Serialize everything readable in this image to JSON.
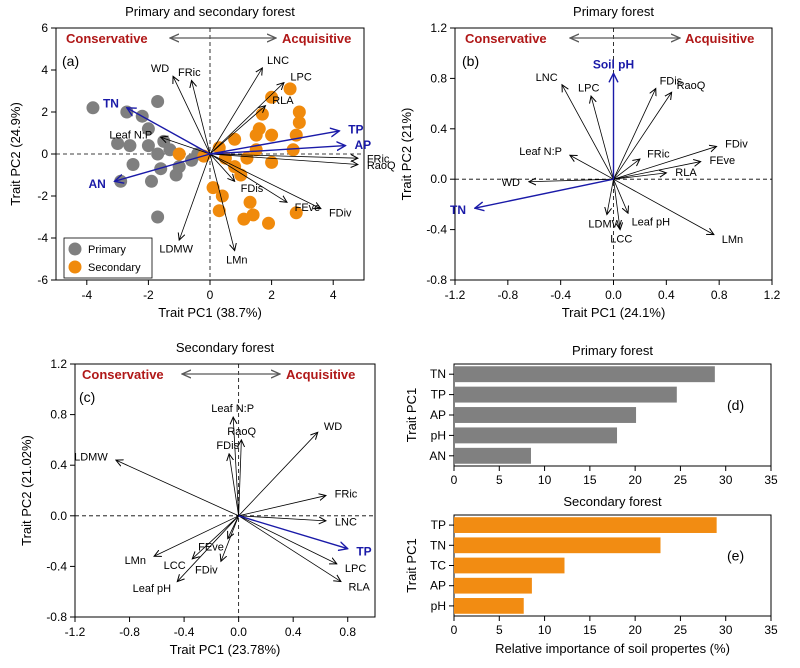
{
  "figure": {
    "axis_color": "#000000",
    "arrow_color": "#000000",
    "soil_arrow_color": "#1a1aa8",
    "cons_acq_color": "#b01818",
    "primary_color": "#7f7f7f",
    "secondary_color": "#f08a0c",
    "header_arrow_color": "#595959"
  },
  "chart_data": [
    {
      "id": "a",
      "type": "scatter",
      "title": "Primary and secondary forest",
      "panel_label": "(a)",
      "xlabel": "Trait PC1 (38.7%)",
      "ylabel": "Trait PC2 (24.9%)",
      "xlim": [
        -5,
        5
      ],
      "ylim": [
        -6,
        6
      ],
      "xticks": [
        -4,
        -2,
        0,
        2,
        4
      ],
      "yticks": [
        -6,
        -4,
        -2,
        0,
        2,
        4,
        6
      ],
      "conservative": "Conservative",
      "acquisitive": "Acquisitive",
      "legend": [
        "Primary",
        "Secondary"
      ],
      "legend_position": "bottom-left",
      "series": [
        {
          "name": "Primary",
          "points": [
            [
              -3.8,
              2.2
            ],
            [
              -2.7,
              2.0
            ],
            [
              -2.2,
              1.8
            ],
            [
              -1.7,
              2.5
            ],
            [
              -2.0,
              1.2
            ],
            [
              -1.5,
              0.6
            ],
            [
              -3.0,
              0.5
            ],
            [
              -2.6,
              0.4
            ],
            [
              -2.0,
              0.4
            ],
            [
              -1.3,
              0.2
            ],
            [
              -1.7,
              0.0
            ],
            [
              -2.5,
              -0.5
            ],
            [
              -1.6,
              -0.7
            ],
            [
              -1.1,
              -1.0
            ],
            [
              -1.9,
              -1.3
            ],
            [
              -2.9,
              -1.3
            ],
            [
              -1.7,
              -3.0
            ],
            [
              -0.4,
              0.0
            ],
            [
              -0.6,
              -0.3
            ],
            [
              -1.0,
              -0.6
            ]
          ]
        },
        {
          "name": "Secondary",
          "points": [
            [
              2.6,
              3.1
            ],
            [
              2.0,
              2.7
            ],
            [
              2.9,
              2.0
            ],
            [
              1.7,
              1.9
            ],
            [
              1.6,
              1.2
            ],
            [
              2.9,
              1.5
            ],
            [
              1.5,
              0.9
            ],
            [
              2.0,
              0.9
            ],
            [
              2.8,
              0.9
            ],
            [
              0.8,
              0.7
            ],
            [
              0.3,
              0.3
            ],
            [
              1.5,
              0.2
            ],
            [
              2.7,
              0.2
            ],
            [
              -1.0,
              0.0
            ],
            [
              -0.2,
              -0.1
            ],
            [
              0.5,
              -0.2
            ],
            [
              1.2,
              -0.2
            ],
            [
              0.8,
              -0.6
            ],
            [
              2.0,
              -0.4
            ],
            [
              1.0,
              -1.0
            ],
            [
              0.1,
              -1.6
            ],
            [
              0.4,
              -2.0
            ],
            [
              1.3,
              -2.3
            ],
            [
              0.3,
              -2.7
            ],
            [
              1.4,
              -2.9
            ],
            [
              1.1,
              -3.1
            ],
            [
              1.9,
              -3.3
            ],
            [
              2.8,
              -2.8
            ]
          ]
        }
      ],
      "vectors": [
        {
          "name": "WD",
          "x": -1.2,
          "y": 3.7,
          "soil": false
        },
        {
          "name": "FRic",
          "x": -0.6,
          "y": 3.5,
          "soil": false
        },
        {
          "name": "LNC",
          "x": 1.7,
          "y": 4.1,
          "soil": false
        },
        {
          "name": "LPC",
          "x": 2.4,
          "y": 3.4,
          "soil": false
        },
        {
          "name": "RLA",
          "x": 1.8,
          "y": 2.3,
          "soil": false
        },
        {
          "name": "Leaf N:P",
          "x": -1.6,
          "y": 0.8,
          "soil": false
        },
        {
          "name": "FRic",
          "x": 4.8,
          "y": -0.2,
          "soil": false
        },
        {
          "name": "RaoQ",
          "x": 4.8,
          "y": -0.5,
          "soil": false
        },
        {
          "name": "FDis",
          "x": 0.8,
          "y": -1.3,
          "soil": false
        },
        {
          "name": "FEve",
          "x": 2.5,
          "y": -2.3,
          "soil": false
        },
        {
          "name": "FDiv",
          "x": 3.6,
          "y": -2.6,
          "soil": false
        },
        {
          "name": "LDMW",
          "x": -1.0,
          "y": -4.1,
          "soil": false
        },
        {
          "name": "LMn",
          "x": 0.8,
          "y": -4.6,
          "soil": false
        },
        {
          "name": "TN",
          "x": -2.7,
          "y": 2.2,
          "soil": true
        },
        {
          "name": "TP",
          "x": 4.2,
          "y": 1.1,
          "soil": true
        },
        {
          "name": "AP",
          "x": 4.4,
          "y": 0.4,
          "soil": true
        },
        {
          "name": "AN",
          "x": -3.1,
          "y": -1.3,
          "soil": true
        }
      ]
    },
    {
      "id": "b",
      "type": "scatter",
      "title": "Primary forest",
      "panel_label": "(b)",
      "xlabel": "Trait PC1 (24.1%)",
      "ylabel": "Trait PC2 (21%)",
      "xlim": [
        -1.2,
        1.2
      ],
      "ylim": [
        -0.8,
        1.2
      ],
      "xticks": [
        -1.2,
        -0.8,
        -0.4,
        0.0,
        0.4,
        0.8,
        1.2
      ],
      "yticks": [
        -0.8,
        -0.4,
        0.0,
        0.4,
        0.8,
        1.2
      ],
      "conservative": "Conservative",
      "acquisitive": "Acquisitive",
      "vectors": [
        {
          "name": "LNC",
          "x": -0.39,
          "y": 0.75,
          "soil": false
        },
        {
          "name": "LPC",
          "x": -0.17,
          "y": 0.66,
          "soil": false
        },
        {
          "name": "FDis",
          "x": 0.32,
          "y": 0.72,
          "soil": false
        },
        {
          "name": "RaoQ",
          "x": 0.44,
          "y": 0.69,
          "soil": false
        },
        {
          "name": "FRic",
          "x": 0.2,
          "y": 0.16,
          "soil": false
        },
        {
          "name": "FDiv",
          "x": 0.78,
          "y": 0.26,
          "soil": false
        },
        {
          "name": "FEve",
          "x": 0.66,
          "y": 0.14,
          "soil": false
        },
        {
          "name": "RLA",
          "x": 0.4,
          "y": 0.05,
          "soil": false
        },
        {
          "name": "Leaf N:P",
          "x": -0.33,
          "y": 0.19,
          "soil": false
        },
        {
          "name": "WD",
          "x": -0.64,
          "y": -0.02,
          "soil": false
        },
        {
          "name": "Leaf pH",
          "x": 0.11,
          "y": -0.27,
          "soil": false
        },
        {
          "name": "LDMW",
          "x": -0.05,
          "y": -0.28,
          "soil": false
        },
        {
          "name": "LCC",
          "x": 0.05,
          "y": -0.4,
          "soil": false
        },
        {
          "name": "LMn",
          "x": 0.76,
          "y": -0.44,
          "soil": false
        },
        {
          "name": "Soil pH",
          "x": 0.0,
          "y": 0.84,
          "soil": true
        },
        {
          "name": "TN",
          "x": -1.05,
          "y": -0.23,
          "soil": true
        }
      ]
    },
    {
      "id": "c",
      "type": "scatter",
      "title": "Secondary forest",
      "panel_label": "(c)",
      "xlabel": "Trait PC1 (23.78%)",
      "ylabel": "Trait PC2 (21.02%)",
      "xlim": [
        -1.2,
        1.0
      ],
      "ylim": [
        -0.8,
        1.2
      ],
      "xticks": [
        -1.2,
        -0.8,
        -0.4,
        0.0,
        0.4,
        0.8
      ],
      "yticks": [
        -0.8,
        -0.4,
        0.0,
        0.4,
        0.8,
        1.2
      ],
      "conservative": "Conservative",
      "acquisitive": "Acquisitive",
      "vectors": [
        {
          "name": "Leaf N:P",
          "x": -0.04,
          "y": 0.78,
          "soil": false
        },
        {
          "name": "RaoQ",
          "x": 0.02,
          "y": 0.6,
          "soil": false
        },
        {
          "name": "FDis",
          "x": -0.07,
          "y": 0.49,
          "soil": false
        },
        {
          "name": "WD",
          "x": 0.58,
          "y": 0.66,
          "soil": false
        },
        {
          "name": "LDMW",
          "x": -0.9,
          "y": 0.44,
          "soil": false
        },
        {
          "name": "FRic",
          "x": 0.64,
          "y": 0.16,
          "soil": false
        },
        {
          "name": "LNC",
          "x": 0.64,
          "y": -0.04,
          "soil": false
        },
        {
          "name": "FEve",
          "x": -0.08,
          "y": -0.18,
          "soil": false
        },
        {
          "name": "LMn",
          "x": -0.62,
          "y": -0.32,
          "soil": false
        },
        {
          "name": "LCC",
          "x": -0.34,
          "y": -0.34,
          "soil": false
        },
        {
          "name": "FDiv",
          "x": -0.13,
          "y": -0.36,
          "soil": false
        },
        {
          "name": "LPC",
          "x": 0.72,
          "y": -0.38,
          "soil": false
        },
        {
          "name": "RLA",
          "x": 0.75,
          "y": -0.52,
          "soil": false
        },
        {
          "name": "Leaf pH",
          "x": -0.45,
          "y": -0.52,
          "soil": false
        },
        {
          "name": "TP",
          "x": 0.8,
          "y": -0.26,
          "soil": true
        }
      ]
    },
    {
      "id": "d",
      "type": "bar",
      "orientation": "horizontal",
      "title": "Primary forest",
      "panel_label": "(d)",
      "ylabel": "Trait PC1",
      "categories": [
        "TN",
        "TP",
        "AP",
        "pH",
        "AN"
      ],
      "values": [
        28.8,
        24.6,
        20.1,
        18.0,
        8.5
      ],
      "xlim": [
        0,
        35
      ],
      "xticks": [
        0,
        5,
        10,
        15,
        20,
        25,
        30,
        35
      ],
      "color": "#808080"
    },
    {
      "id": "e",
      "type": "bar",
      "orientation": "horizontal",
      "title": "Secondary forest",
      "panel_label": "(e)",
      "ylabel": "Trait PC1",
      "xlabel": "Relative importance of soil propertes (%)",
      "categories": [
        "TP",
        "TN",
        "TC",
        "AP",
        "pH"
      ],
      "values": [
        29.0,
        22.8,
        12.2,
        8.6,
        7.7
      ],
      "xlim": [
        0,
        35
      ],
      "xticks": [
        0,
        5,
        10,
        15,
        20,
        25,
        30,
        35
      ],
      "color": "#f28c12"
    }
  ]
}
